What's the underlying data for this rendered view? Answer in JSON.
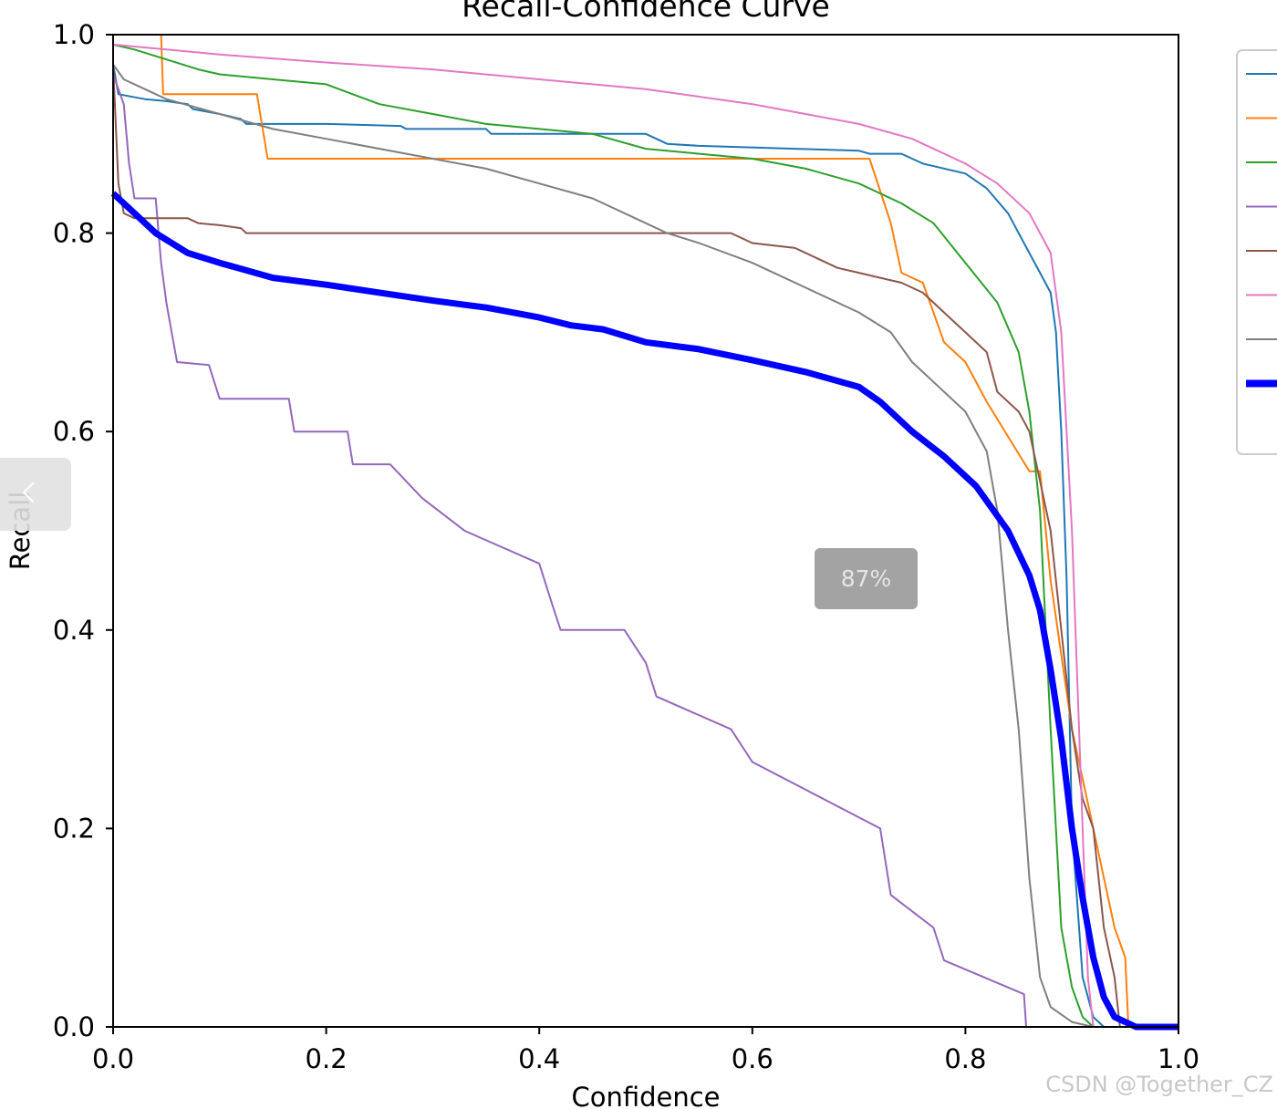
{
  "chart_data": {
    "type": "line",
    "title": "Recall-Confidence Curve",
    "xlabel": "Confidence",
    "ylabel": "Recall",
    "xlim": [
      0,
      1
    ],
    "ylim": [
      0,
      1
    ],
    "xticks": [
      "0.0",
      "0.2",
      "0.4",
      "0.6",
      "0.8",
      "1.0"
    ],
    "yticks": [
      "0.0",
      "0.2",
      "0.4",
      "0.6",
      "0.8",
      "1.0"
    ],
    "grid": false,
    "legend": "right, outside plot (entry labels cropped)",
    "series": [
      {
        "color": "#1f77b4",
        "width": "thin",
        "points": [
          [
            0,
            0.97
          ],
          [
            0.005,
            0.94
          ],
          [
            0.03,
            0.935
          ],
          [
            0.05,
            0.933
          ],
          [
            0.07,
            0.93
          ],
          [
            0.075,
            0.925
          ],
          [
            0.1,
            0.92
          ],
          [
            0.12,
            0.915
          ],
          [
            0.125,
            0.91
          ],
          [
            0.2,
            0.91
          ],
          [
            0.27,
            0.908
          ],
          [
            0.275,
            0.905
          ],
          [
            0.35,
            0.905
          ],
          [
            0.355,
            0.9
          ],
          [
            0.5,
            0.9
          ],
          [
            0.52,
            0.89
          ],
          [
            0.55,
            0.888
          ],
          [
            0.64,
            0.885
          ],
          [
            0.7,
            0.883
          ],
          [
            0.71,
            0.88
          ],
          [
            0.74,
            0.88
          ],
          [
            0.76,
            0.87
          ],
          [
            0.8,
            0.86
          ],
          [
            0.82,
            0.845
          ],
          [
            0.84,
            0.82
          ],
          [
            0.855,
            0.79
          ],
          [
            0.87,
            0.76
          ],
          [
            0.88,
            0.74
          ],
          [
            0.885,
            0.7
          ],
          [
            0.89,
            0.6
          ],
          [
            0.895,
            0.45
          ],
          [
            0.9,
            0.2
          ],
          [
            0.91,
            0.05
          ],
          [
            0.92,
            0.01
          ],
          [
            0.93,
            0
          ]
        ]
      },
      {
        "color": "#ff7f0e",
        "width": "thin",
        "points": [
          [
            0.045,
            1
          ],
          [
            0.047,
            0.94
          ],
          [
            0.1,
            0.94
          ],
          [
            0.135,
            0.94
          ],
          [
            0.145,
            0.875
          ],
          [
            0.3,
            0.875
          ],
          [
            0.5,
            0.875
          ],
          [
            0.7,
            0.875
          ],
          [
            0.71,
            0.875
          ],
          [
            0.73,
            0.81
          ],
          [
            0.74,
            0.76
          ],
          [
            0.76,
            0.75
          ],
          [
            0.77,
            0.72
          ],
          [
            0.78,
            0.69
          ],
          [
            0.8,
            0.67
          ],
          [
            0.82,
            0.63
          ],
          [
            0.86,
            0.56
          ],
          [
            0.87,
            0.56
          ],
          [
            0.88,
            0.45
          ],
          [
            0.9,
            0.3
          ],
          [
            0.92,
            0.2
          ],
          [
            0.94,
            0.1
          ],
          [
            0.95,
            0.07
          ],
          [
            0.953,
            0
          ]
        ]
      },
      {
        "color": "#2ca02c",
        "width": "thin",
        "points": [
          [
            0,
            0.99
          ],
          [
            0.02,
            0.985
          ],
          [
            0.05,
            0.975
          ],
          [
            0.08,
            0.965
          ],
          [
            0.1,
            0.96
          ],
          [
            0.15,
            0.955
          ],
          [
            0.2,
            0.95
          ],
          [
            0.25,
            0.93
          ],
          [
            0.3,
            0.92
          ],
          [
            0.35,
            0.91
          ],
          [
            0.4,
            0.905
          ],
          [
            0.45,
            0.9
          ],
          [
            0.5,
            0.885
          ],
          [
            0.55,
            0.88
          ],
          [
            0.6,
            0.875
          ],
          [
            0.65,
            0.865
          ],
          [
            0.7,
            0.85
          ],
          [
            0.74,
            0.83
          ],
          [
            0.77,
            0.81
          ],
          [
            0.8,
            0.77
          ],
          [
            0.83,
            0.73
          ],
          [
            0.85,
            0.68
          ],
          [
            0.86,
            0.62
          ],
          [
            0.87,
            0.52
          ],
          [
            0.88,
            0.3
          ],
          [
            0.89,
            0.1
          ],
          [
            0.9,
            0.04
          ],
          [
            0.91,
            0.01
          ],
          [
            0.92,
            0
          ]
        ]
      },
      {
        "color": "#9467bd",
        "width": "thin",
        "points": [
          [
            0,
            0.96
          ],
          [
            0.01,
            0.93
          ],
          [
            0.015,
            0.87
          ],
          [
            0.02,
            0.835
          ],
          [
            0.04,
            0.835
          ],
          [
            0.045,
            0.77
          ],
          [
            0.05,
            0.73
          ],
          [
            0.055,
            0.7
          ],
          [
            0.06,
            0.67
          ],
          [
            0.09,
            0.667
          ],
          [
            0.1,
            0.633
          ],
          [
            0.165,
            0.633
          ],
          [
            0.17,
            0.6
          ],
          [
            0.22,
            0.6
          ],
          [
            0.225,
            0.567
          ],
          [
            0.26,
            0.567
          ],
          [
            0.29,
            0.533
          ],
          [
            0.33,
            0.5
          ],
          [
            0.4,
            0.467
          ],
          [
            0.41,
            0.433
          ],
          [
            0.42,
            0.4
          ],
          [
            0.48,
            0.4
          ],
          [
            0.5,
            0.367
          ],
          [
            0.51,
            0.333
          ],
          [
            0.58,
            0.3
          ],
          [
            0.6,
            0.267
          ],
          [
            0.72,
            0.2
          ],
          [
            0.73,
            0.133
          ],
          [
            0.77,
            0.1
          ],
          [
            0.78,
            0.067
          ],
          [
            0.855,
            0.033
          ],
          [
            0.857,
            0
          ]
        ]
      },
      {
        "color": "#8c564b",
        "width": "thin",
        "points": [
          [
            0,
            0.97
          ],
          [
            0.005,
            0.85
          ],
          [
            0.01,
            0.82
          ],
          [
            0.02,
            0.815
          ],
          [
            0.07,
            0.815
          ],
          [
            0.08,
            0.81
          ],
          [
            0.1,
            0.808
          ],
          [
            0.12,
            0.805
          ],
          [
            0.125,
            0.8
          ],
          [
            0.3,
            0.8
          ],
          [
            0.58,
            0.8
          ],
          [
            0.6,
            0.79
          ],
          [
            0.64,
            0.785
          ],
          [
            0.66,
            0.775
          ],
          [
            0.68,
            0.765
          ],
          [
            0.7,
            0.76
          ],
          [
            0.72,
            0.755
          ],
          [
            0.74,
            0.75
          ],
          [
            0.76,
            0.74
          ],
          [
            0.78,
            0.72
          ],
          [
            0.8,
            0.7
          ],
          [
            0.82,
            0.68
          ],
          [
            0.83,
            0.64
          ],
          [
            0.85,
            0.62
          ],
          [
            0.86,
            0.6
          ],
          [
            0.87,
            0.55
          ],
          [
            0.88,
            0.5
          ],
          [
            0.89,
            0.4
          ],
          [
            0.9,
            0.3
          ],
          [
            0.91,
            0.23
          ],
          [
            0.92,
            0.2
          ],
          [
            0.93,
            0.1
          ],
          [
            0.94,
            0.05
          ],
          [
            0.945,
            0
          ]
        ]
      },
      {
        "color": "#e377c2",
        "width": "thin",
        "points": [
          [
            0,
            0.99
          ],
          [
            0.05,
            0.985
          ],
          [
            0.1,
            0.98
          ],
          [
            0.2,
            0.972
          ],
          [
            0.3,
            0.965
          ],
          [
            0.4,
            0.955
          ],
          [
            0.5,
            0.945
          ],
          [
            0.6,
            0.93
          ],
          [
            0.7,
            0.91
          ],
          [
            0.75,
            0.895
          ],
          [
            0.8,
            0.87
          ],
          [
            0.83,
            0.85
          ],
          [
            0.86,
            0.82
          ],
          [
            0.88,
            0.78
          ],
          [
            0.89,
            0.7
          ],
          [
            0.9,
            0.5
          ],
          [
            0.91,
            0.2
          ],
          [
            0.915,
            0.05
          ],
          [
            0.92,
            0
          ]
        ]
      },
      {
        "color": "#7f7f7f",
        "width": "thin",
        "points": [
          [
            0,
            0.97
          ],
          [
            0.01,
            0.955
          ],
          [
            0.03,
            0.945
          ],
          [
            0.05,
            0.935
          ],
          [
            0.1,
            0.92
          ],
          [
            0.15,
            0.905
          ],
          [
            0.2,
            0.895
          ],
          [
            0.25,
            0.885
          ],
          [
            0.3,
            0.875
          ],
          [
            0.35,
            0.865
          ],
          [
            0.4,
            0.85
          ],
          [
            0.45,
            0.835
          ],
          [
            0.5,
            0.81
          ],
          [
            0.52,
            0.8
          ],
          [
            0.55,
            0.79
          ],
          [
            0.6,
            0.77
          ],
          [
            0.65,
            0.745
          ],
          [
            0.7,
            0.72
          ],
          [
            0.73,
            0.7
          ],
          [
            0.75,
            0.67
          ],
          [
            0.77,
            0.65
          ],
          [
            0.8,
            0.62
          ],
          [
            0.82,
            0.58
          ],
          [
            0.83,
            0.52
          ],
          [
            0.84,
            0.4
          ],
          [
            0.85,
            0.3
          ],
          [
            0.86,
            0.15
          ],
          [
            0.87,
            0.05
          ],
          [
            0.88,
            0.02
          ],
          [
            0.9,
            0.005
          ],
          [
            0.92,
            0
          ]
        ]
      },
      {
        "color": "#0000ff",
        "width": "thick",
        "points": [
          [
            0,
            0.84
          ],
          [
            0.02,
            0.82
          ],
          [
            0.04,
            0.8
          ],
          [
            0.07,
            0.78
          ],
          [
            0.1,
            0.77
          ],
          [
            0.15,
            0.755
          ],
          [
            0.2,
            0.748
          ],
          [
            0.25,
            0.74
          ],
          [
            0.3,
            0.732
          ],
          [
            0.35,
            0.725
          ],
          [
            0.4,
            0.715
          ],
          [
            0.43,
            0.707
          ],
          [
            0.46,
            0.703
          ],
          [
            0.5,
            0.69
          ],
          [
            0.55,
            0.683
          ],
          [
            0.6,
            0.672
          ],
          [
            0.65,
            0.66
          ],
          [
            0.7,
            0.645
          ],
          [
            0.72,
            0.63
          ],
          [
            0.75,
            0.6
          ],
          [
            0.78,
            0.575
          ],
          [
            0.81,
            0.545
          ],
          [
            0.84,
            0.5
          ],
          [
            0.86,
            0.455
          ],
          [
            0.87,
            0.42
          ],
          [
            0.88,
            0.36
          ],
          [
            0.89,
            0.29
          ],
          [
            0.9,
            0.2
          ],
          [
            0.91,
            0.13
          ],
          [
            0.92,
            0.07
          ],
          [
            0.93,
            0.03
          ],
          [
            0.94,
            0.01
          ],
          [
            0.96,
            0
          ],
          [
            1,
            0
          ]
        ]
      }
    ]
  },
  "overlay": {
    "zoom_level": "87%",
    "watermark": "CSDN @Together_CZ"
  }
}
